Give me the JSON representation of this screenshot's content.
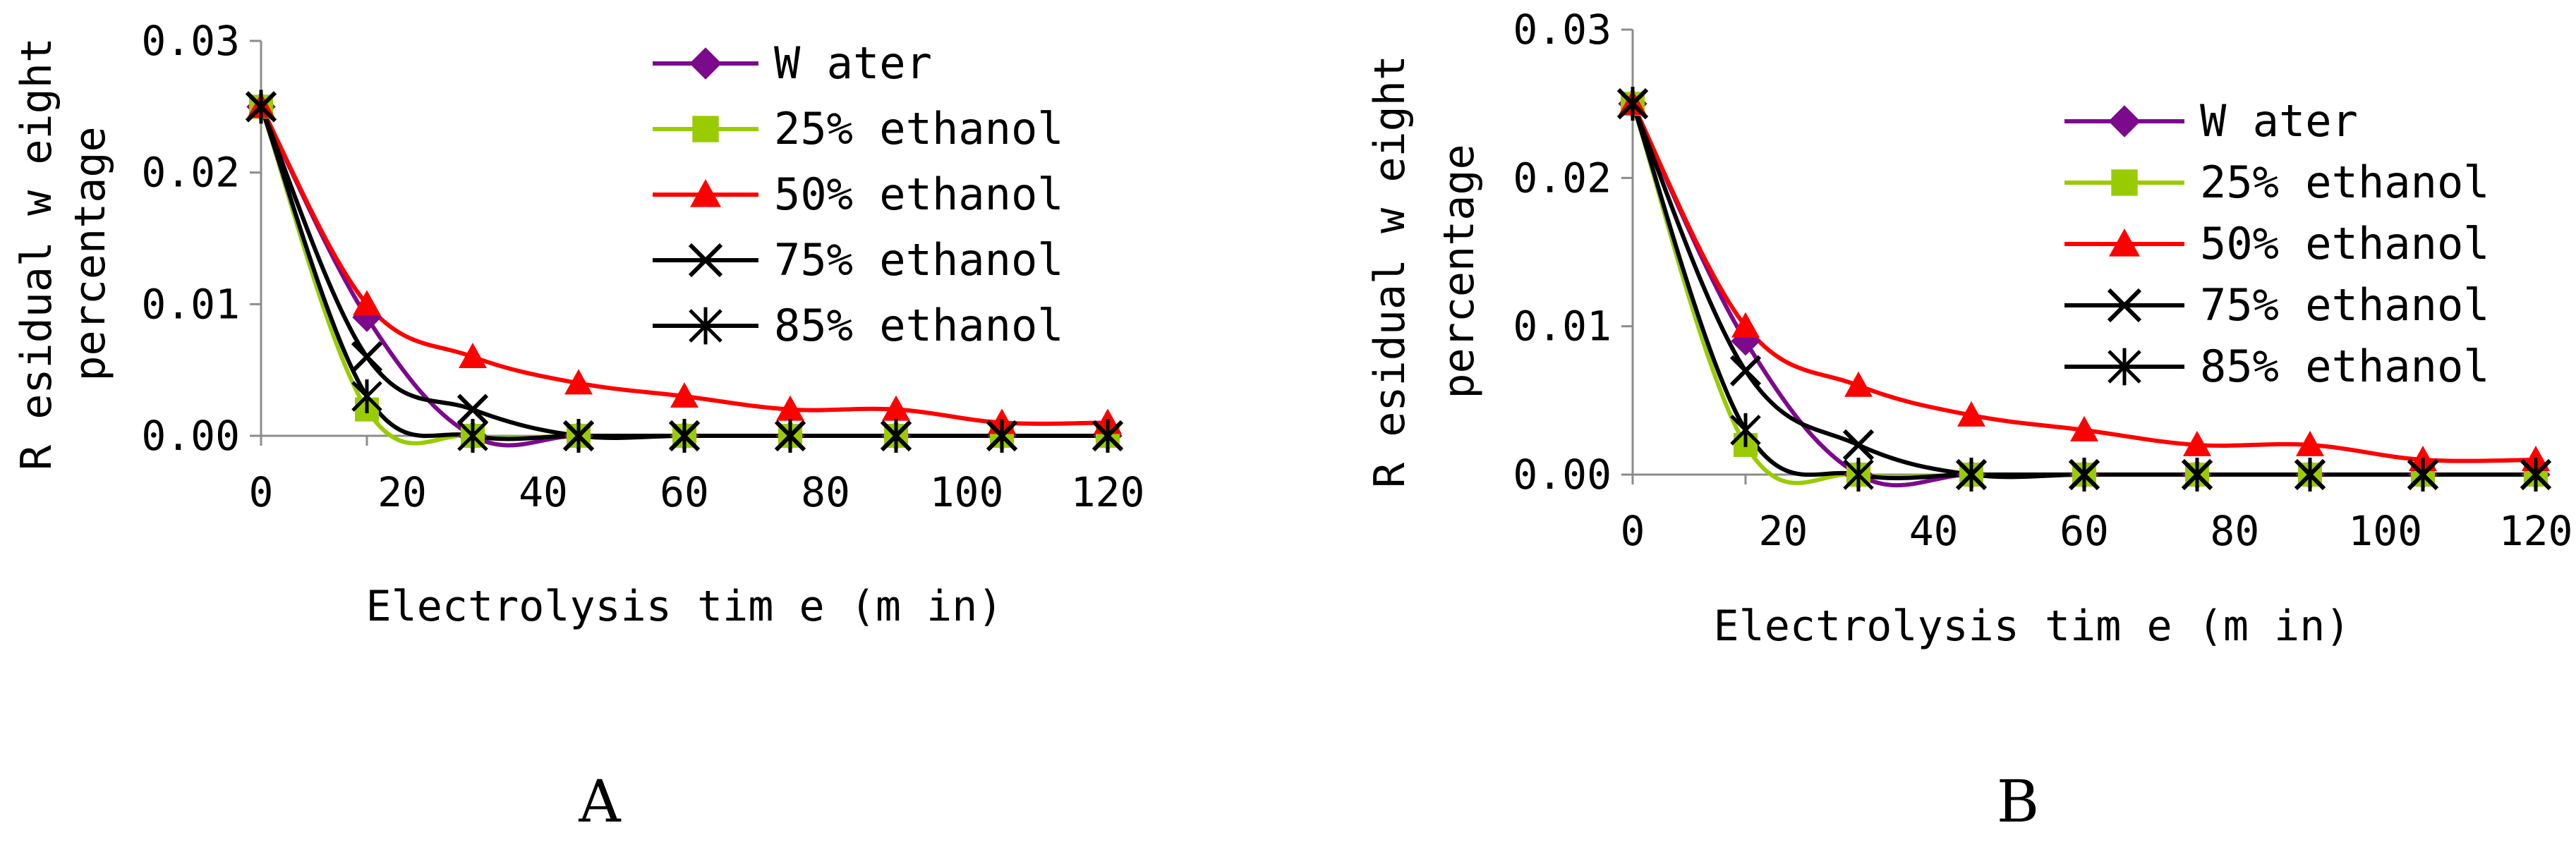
{
  "chart_data": [
    {
      "type": "line",
      "panel_label": "A",
      "xlabel": "Electrolysis tim e (m in)",
      "ylabel_lines": [
        "R esidual w eight",
        "percentage"
      ],
      "x": [
        0,
        15,
        30,
        45,
        60,
        75,
        90,
        105,
        120
      ],
      "x_ticks": [
        "0",
        "20",
        "40",
        "60",
        "80",
        "100",
        "120"
      ],
      "y_ticks": [
        "0.00",
        "0.01",
        "0.02",
        "0.03"
      ],
      "xlim": [
        0,
        120
      ],
      "ylim": [
        0,
        0.03
      ],
      "legend_position": "top-right",
      "series": [
        {
          "name": "W ater",
          "color": "#7b0a8c",
          "marker": "diamond",
          "values": [
            0.025,
            0.009,
            0.0,
            0.0,
            0.0,
            0.0,
            0.0,
            0.0,
            0.0
          ]
        },
        {
          "name": "25% ethanol",
          "color": "#99cc00",
          "marker": "square",
          "values": [
            0.025,
            0.002,
            0.0,
            0.0,
            0.0,
            0.0,
            0.0,
            0.0,
            0.0
          ]
        },
        {
          "name": "50% ethanol",
          "color": "#ff0000",
          "marker": "triangle",
          "values": [
            0.025,
            0.01,
            0.006,
            0.004,
            0.003,
            0.002,
            0.002,
            0.001,
            0.001
          ]
        },
        {
          "name": "75% ethanol",
          "color": "#000000",
          "marker": "x",
          "values": [
            0.025,
            0.006,
            0.002,
            0.0,
            0.0,
            0.0,
            0.0,
            0.0,
            0.0
          ]
        },
        {
          "name": "85% ethanol",
          "color": "#000000",
          "marker": "star",
          "values": [
            0.025,
            0.003,
            0.0,
            0.0,
            0.0,
            0.0,
            0.0,
            0.0,
            0.0
          ]
        }
      ]
    },
    {
      "type": "line",
      "panel_label": "B",
      "xlabel": "Electrolysis tim e (m in)",
      "ylabel_lines": [
        "R esidual w eight",
        "percentage"
      ],
      "x": [
        0,
        15,
        30,
        45,
        60,
        75,
        90,
        105,
        120
      ],
      "x_ticks": [
        "0",
        "20",
        "40",
        "60",
        "80",
        "100",
        "120"
      ],
      "y_ticks": [
        "0.00",
        "0.01",
        "0.02",
        "0.03"
      ],
      "xlim": [
        0,
        120
      ],
      "ylim": [
        0,
        0.03
      ],
      "legend_position": "top-right",
      "series": [
        {
          "name": "W ater",
          "color": "#7b0a8c",
          "marker": "diamond",
          "values": [
            0.025,
            0.009,
            0.0,
            0.0,
            0.0,
            0.0,
            0.0,
            0.0,
            0.0
          ]
        },
        {
          "name": "25% ethanol",
          "color": "#99cc00",
          "marker": "square",
          "values": [
            0.025,
            0.002,
            0.0,
            0.0,
            0.0,
            0.0,
            0.0,
            0.0,
            0.0
          ]
        },
        {
          "name": "50% ethanol",
          "color": "#ff0000",
          "marker": "triangle",
          "values": [
            0.025,
            0.01,
            0.006,
            0.004,
            0.003,
            0.002,
            0.002,
            0.001,
            0.001
          ]
        },
        {
          "name": "75% ethanol",
          "color": "#000000",
          "marker": "x",
          "values": [
            0.025,
            0.007,
            0.002,
            0.0,
            0.0,
            0.0,
            0.0,
            0.0,
            0.0
          ]
        },
        {
          "name": "85% ethanol",
          "color": "#000000",
          "marker": "star",
          "values": [
            0.025,
            0.003,
            0.0,
            0.0,
            0.0,
            0.0,
            0.0,
            0.0,
            0.0
          ]
        }
      ]
    }
  ]
}
